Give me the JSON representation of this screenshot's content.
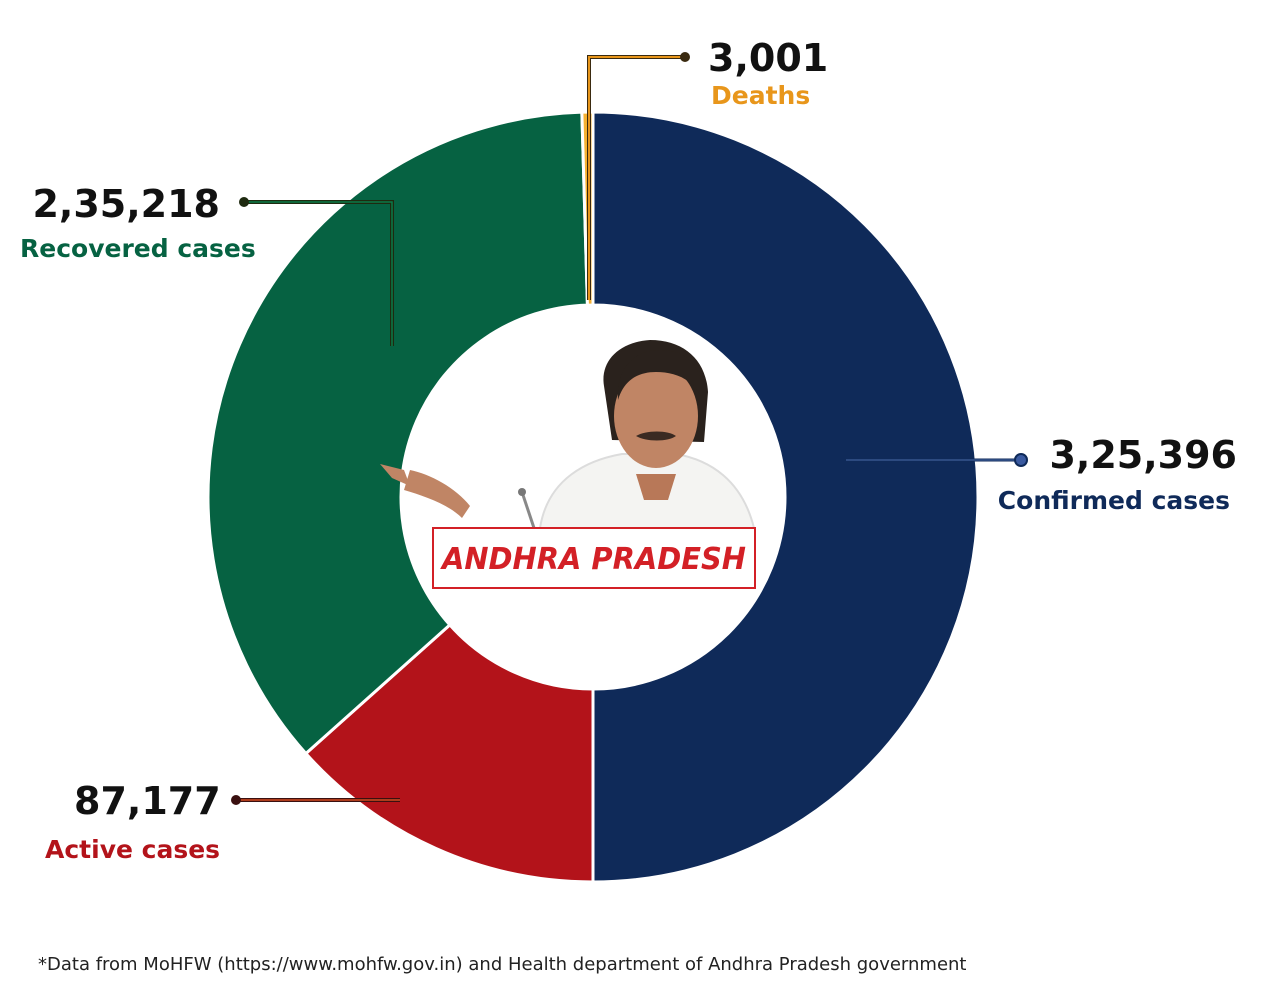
{
  "chart_data": {
    "type": "pie",
    "variant": "donut",
    "center_label": "ANDHRA PRADESH",
    "slices": [
      {
        "key": "confirmed",
        "label": "Confirmed cases",
        "value": 325396,
        "display": "3,25,396",
        "color": "#0f2a59",
        "label_color": "#0f2a59"
      },
      {
        "key": "active",
        "label": "Active cases",
        "value": 87177,
        "display": "87,177",
        "color": "#b3131a",
        "label_color": "#b3131a"
      },
      {
        "key": "recovered",
        "label": "Recovered cases",
        "value": 235218,
        "display": "2,35,218",
        "color": "#066242",
        "label_color": "#066242"
      },
      {
        "key": "deaths",
        "label": "Deaths",
        "value": 3001,
        "display": "3,001",
        "color": "#f5b233",
        "label_color": "#e8961b"
      }
    ]
  },
  "footnote": "*Data from MoHFW (https://www.mohfw.gov.in) and Health department of Andhra Pradesh government"
}
